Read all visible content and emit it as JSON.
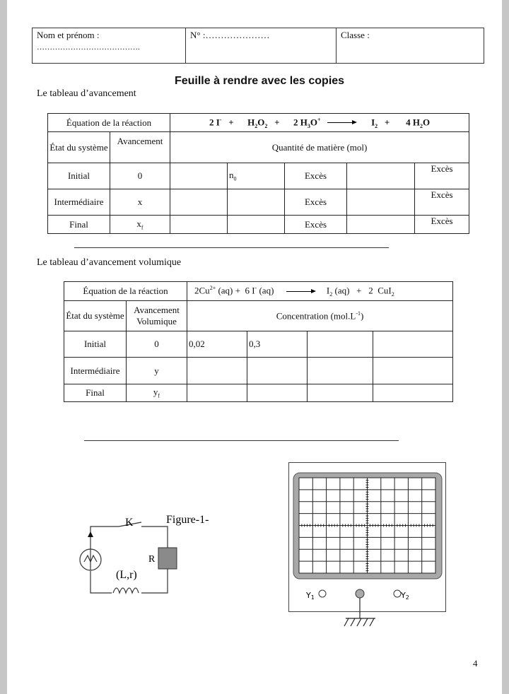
{
  "header": {
    "name_label": "Nom et prénom :",
    "name_dots": "………………………………….",
    "number_label": "N° :…………………",
    "class_label": "Classe :"
  },
  "title": "Feuille à rendre avec les copies",
  "section1": {
    "label": "Le tableau d’avancement",
    "equation_label": "Équation de la réaction",
    "equation": {
      "t1": "2 I",
      "t1sup": "-",
      "t2": "H",
      "t2sub": "2",
      "t2b": "O",
      "t2sub2": "2",
      "t3": "2 H",
      "t3sub": "3",
      "t3b": "O",
      "t3sup": "+",
      "t4": "I",
      "t4sub": "2",
      "t5": "4 H",
      "t5sub": "2",
      "t5b": "O",
      "plus": "+"
    },
    "col_state": "État du système",
    "col_adv": "Avancement",
    "col_qty": "Quantité de matière (mol)",
    "rows": [
      {
        "state": "Initial",
        "adv": "0",
        "c2": "n",
        "c2sub": "0",
        "c3": "Excès",
        "c5": "Excès"
      },
      {
        "state": "Intermédiaire",
        "adv": "x",
        "c3": "Excès",
        "c5": "Excès"
      },
      {
        "state": "Final",
        "adv": "x",
        "advsub": "f",
        "c3": "Excès",
        "c5": "Excès"
      }
    ]
  },
  "section2": {
    "label": "Le tableau d’avancement volumique",
    "equation_label": "Équation de la réaction",
    "equation": {
      "a": "2Cu",
      "asup": "2+",
      "b": " (aq) +  6 I",
      "bsup": "-",
      "c": " (aq)",
      "d": "I",
      "dsub": "2",
      "e": " (aq)   +   2  CuI",
      "esub": "2",
      "esup": "-"
    },
    "col_state": "État du système",
    "col_adv": "Avancement Volumique",
    "col_conc": "Concentration (mol.L",
    "col_conc_sup": "-1",
    "col_conc_end": ")",
    "rows": [
      {
        "state": "Initial",
        "adv": "0",
        "c1": "0,02",
        "c2": "0,3"
      },
      {
        "state": "Intermédiaire",
        "adv": "y"
      },
      {
        "state": "Final",
        "adv": "y",
        "advsub": "f"
      }
    ]
  },
  "figure": {
    "caption": "Figure-1-",
    "switch_label": "K",
    "resistor_label": "R",
    "inductor_label": "(L,r)"
  },
  "oscilloscope": {
    "y1_label": "Y",
    "y1_sub": "1",
    "y2_label": "Y",
    "y2_sub": "2",
    "grid_columns": 10,
    "grid_rows": 8
  },
  "page_number": "4"
}
